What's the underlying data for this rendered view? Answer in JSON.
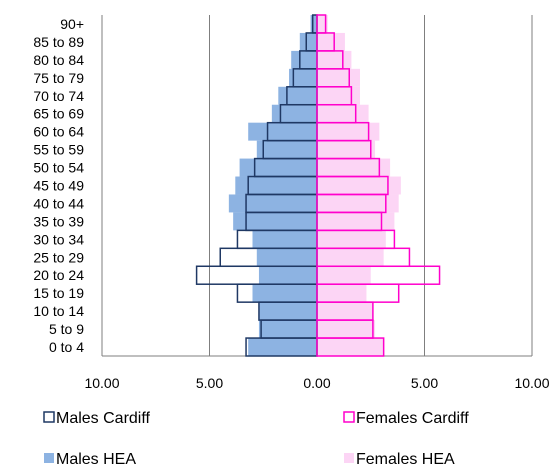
{
  "chart_data": {
    "type": "bar",
    "orientation": "horizontal",
    "categories": [
      "0 to 4",
      "5 to 9",
      "10 to 14",
      "15 to 19",
      "20 to 24",
      "25 to 29",
      "30 to 34",
      "35 to 39",
      "40 to 44",
      "45 to 49",
      "50 to 54",
      "55 to 59",
      "60 to 64",
      "65 to 69",
      "70 to 74",
      "75 to 79",
      "80 to 84",
      "85 to 89",
      "90+"
    ],
    "x_ticks": [
      "10.00",
      "5.00",
      "0.00",
      "5.00",
      "10.00"
    ],
    "xlim": [
      -10,
      10
    ],
    "grid": true,
    "legend_position": "bottom",
    "series": [
      {
        "name": "Males HEA",
        "side": "left",
        "style": "filled",
        "color": "#8db3e2",
        "values": [
          3.2,
          2.7,
          2.7,
          3.0,
          2.7,
          2.8,
          3.0,
          3.9,
          4.1,
          3.8,
          3.6,
          2.8,
          3.2,
          2.1,
          1.8,
          1.3,
          1.2,
          0.8,
          0.3
        ]
      },
      {
        "name": "Females HEA",
        "side": "right",
        "style": "filled",
        "color": "#fcd5f5",
        "values": [
          3.1,
          2.7,
          2.6,
          2.3,
          2.5,
          3.1,
          3.2,
          3.6,
          3.8,
          3.9,
          3.4,
          2.7,
          2.9,
          2.4,
          2.0,
          2.0,
          1.6,
          1.3,
          0.5
        ]
      },
      {
        "name": "Males Cardiff",
        "side": "left",
        "style": "outline",
        "color": "#1f3864",
        "values": [
          3.3,
          2.6,
          2.7,
          3.7,
          5.6,
          4.5,
          3.7,
          3.3,
          3.3,
          3.2,
          2.9,
          2.5,
          2.3,
          1.7,
          1.4,
          1.1,
          0.8,
          0.5,
          0.2
        ]
      },
      {
        "name": "Females Cardiff",
        "side": "right",
        "style": "outline",
        "color": "#ff00cc",
        "values": [
          3.1,
          2.6,
          2.6,
          3.8,
          5.7,
          4.3,
          3.6,
          3.0,
          3.2,
          3.3,
          2.9,
          2.5,
          2.4,
          1.8,
          1.6,
          1.5,
          1.2,
          0.8,
          0.4
        ]
      }
    ]
  },
  "legend": {
    "males_cardiff": "Males Cardiff",
    "females_cardiff": "Females Cardiff",
    "males_hea": "Males HEA",
    "females_hea": "Females HEA"
  }
}
